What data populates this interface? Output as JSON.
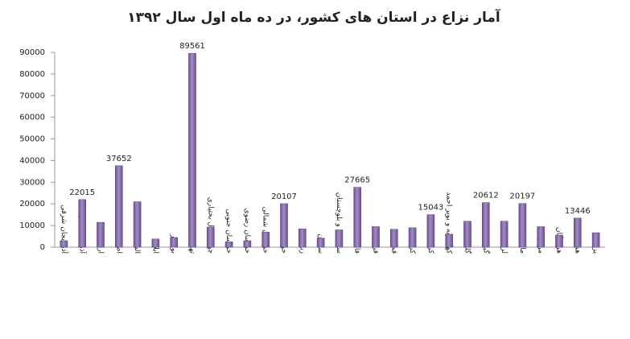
{
  "chart_data": {
    "type": "bar",
    "title": "آمار نزاع در استان های کشور، در ده ماه اول سال ۱۳۹۲",
    "categories": [
      "آذربایجان شرقی",
      "آذربایجان غربی",
      "اردبیل",
      "اصفهان",
      "البرز",
      "ایلام",
      "بوشهر",
      "تهران",
      "چهار محال بختیاری",
      "خراسان جنوبی",
      "خراسان رضوی",
      "خراسان شمالی",
      "خوزستان",
      "زنجان",
      "سمنان",
      "سیستان و بلوچستان",
      "فارس",
      "قزوین",
      "قم",
      "کردستان",
      "کرمانشاه",
      "کهگیلویه و بویر احمد",
      "گلستان",
      "گیلان",
      "لرستان",
      "مازندران",
      "مرکزی",
      "هرمزگان",
      "همدان",
      "یزد"
    ],
    "values": [
      3000,
      22015,
      11500,
      37652,
      21000,
      3800,
      4500,
      89561,
      9300,
      2500,
      3000,
      7000,
      20107,
      8500,
      4200,
      8000,
      27665,
      9500,
      8300,
      9000,
      15043,
      6000,
      12000,
      20612,
      12000,
      20197,
      9500,
      5600,
      13446,
      6700
    ],
    "value_labels": [
      null,
      "22015",
      null,
      "37652",
      null,
      null,
      null,
      "89561",
      null,
      null,
      null,
      null,
      "20107",
      null,
      null,
      null,
      "27665",
      null,
      null,
      null,
      "15043",
      null,
      null,
      "20612",
      null,
      "20197",
      null,
      null,
      "13446",
      null
    ],
    "color": "#8064a2",
    "ylim": [
      0,
      90000
    ],
    "yticks": [
      0,
      10000,
      20000,
      30000,
      40000,
      50000,
      60000,
      70000,
      80000,
      90000
    ],
    "grid": false
  }
}
